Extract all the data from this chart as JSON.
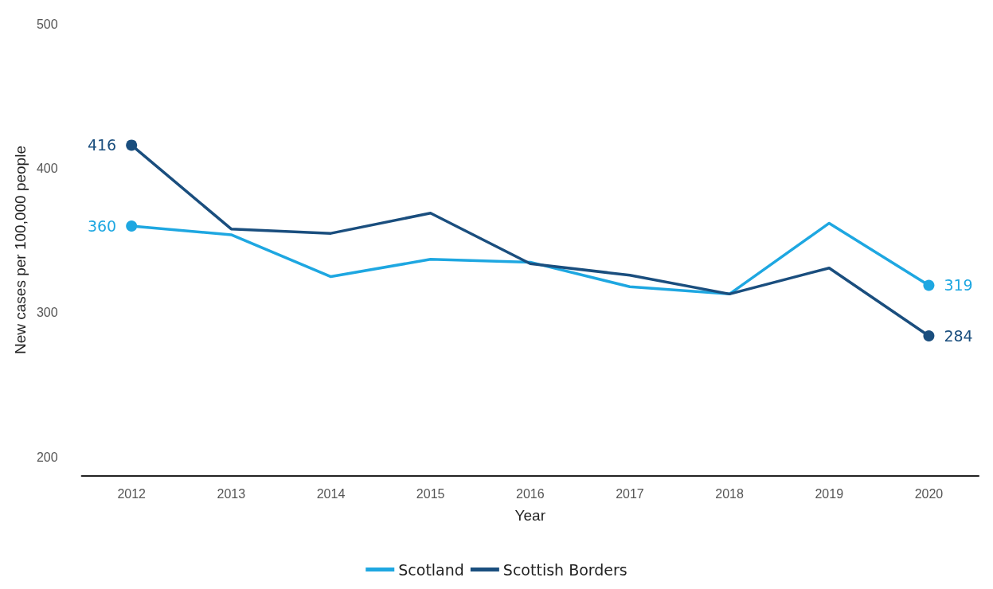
{
  "chart_data": {
    "type": "line",
    "xlabel": "Year",
    "ylabel": "New cases per 100,000 people",
    "categories": [
      "2012",
      "2013",
      "2014",
      "2015",
      "2016",
      "2017",
      "2018",
      "2019",
      "2020"
    ],
    "series": [
      {
        "name": "Scotland",
        "color": "#1ea7e1",
        "values": [
          360,
          354,
          325,
          337,
          335,
          318,
          313,
          362,
          319
        ],
        "value_labels": [
          "360",
          null,
          null,
          null,
          null,
          null,
          null,
          null,
          "319"
        ]
      },
      {
        "name": "Scottish Borders",
        "color": "#1a4e7e",
        "values": [
          416,
          358,
          355,
          369,
          334,
          326,
          313,
          331,
          284
        ],
        "value_labels": [
          "416",
          null,
          null,
          null,
          null,
          null,
          null,
          null,
          "284"
        ]
      }
    ],
    "ylim": [
      187,
      500
    ],
    "yticks": [
      200,
      300,
      400,
      500
    ],
    "grid": false,
    "legend": "bottom",
    "line_style": "solid"
  }
}
